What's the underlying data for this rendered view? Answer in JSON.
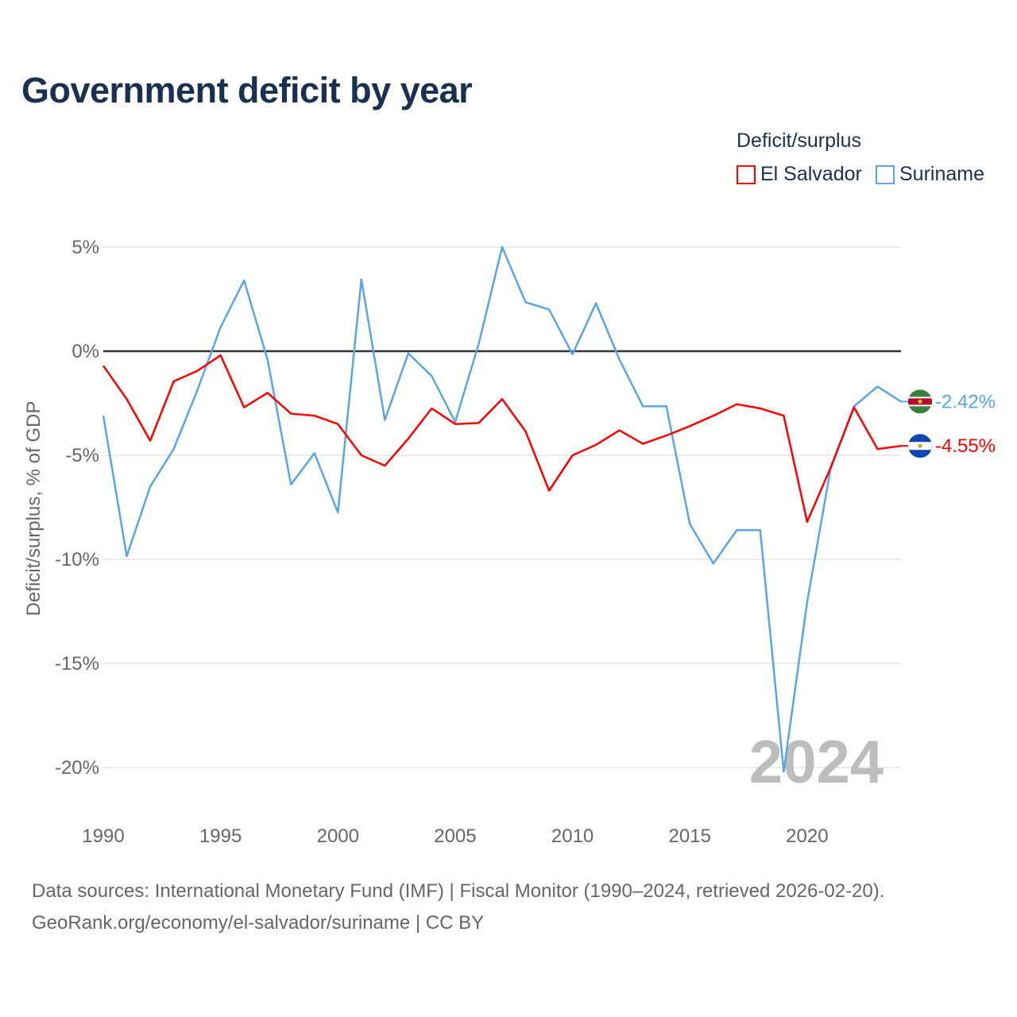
{
  "chart_data": {
    "type": "line",
    "title": "Government deficit by year",
    "xlabel": "",
    "ylabel": "Deficit/surplus, % of GDP",
    "legend_title": "Deficit/surplus",
    "legend_placement": "top-right",
    "x": [
      1990,
      1991,
      1992,
      1993,
      1994,
      1995,
      1996,
      1997,
      1998,
      1999,
      2000,
      2001,
      2002,
      2003,
      2004,
      2005,
      2006,
      2007,
      2008,
      2009,
      2010,
      2011,
      2012,
      2013,
      2014,
      2015,
      2016,
      2017,
      2018,
      2019,
      2020,
      2021,
      2022,
      2023,
      2024
    ],
    "xlim": [
      1990,
      2024
    ],
    "ylim": [
      -20,
      5
    ],
    "x_ticks": [
      "1990",
      "1995",
      "2000",
      "2005",
      "2010",
      "2015",
      "2020"
    ],
    "y_ticks": [
      {
        "v": 5,
        "label": "5%"
      },
      {
        "v": 0,
        "label": "0%"
      },
      {
        "v": -5,
        "label": "-5%"
      },
      {
        "v": -10,
        "label": "-10%"
      },
      {
        "v": -15,
        "label": "-15%"
      },
      {
        "v": -20,
        "label": "-20%"
      }
    ],
    "grid": true,
    "year_watermark": "2024",
    "series": [
      {
        "name": "El Salvador",
        "color": "#ff0000",
        "end_label": "-4.55%",
        "values": [
          -0.7,
          -2.3,
          -4.3,
          -1.45,
          -0.95,
          -0.2,
          -2.7,
          -2.0,
          -3.0,
          -3.1,
          -3.5,
          -5.0,
          -5.5,
          -4.2,
          -2.75,
          -3.5,
          -3.45,
          -2.3,
          -3.85,
          -6.7,
          -5.0,
          -4.5,
          -3.8,
          -4.45,
          -4.05,
          -3.6,
          -3.1,
          -2.55,
          -2.75,
          -3.1,
          -8.2,
          -5.6,
          -2.7,
          -4.7,
          -4.55
        ]
      },
      {
        "name": "Suriname",
        "color": "#5aa5ea",
        "end_label": "-2.42%",
        "values": [
          -3.1,
          -9.85,
          -6.5,
          -4.7,
          -1.9,
          1.15,
          3.4,
          -0.4,
          -6.4,
          -4.9,
          -7.75,
          3.45,
          -3.3,
          -0.1,
          -1.2,
          -3.4,
          0.35,
          5.0,
          2.35,
          2.0,
          -0.15,
          2.3,
          -0.4,
          -2.65,
          -2.65,
          -8.3,
          -10.2,
          -8.6,
          -8.6,
          -20.2,
          -12.05,
          -5.65,
          -2.65,
          -1.7,
          -2.42
        ]
      }
    ]
  },
  "footer": {
    "line1": "Data sources: International Monetary Fund (IMF) | Fiscal Monitor (1990–2024, retrieved 2026-02-20).",
    "line2": "GeoRank.org/economy/el-salvador/suriname | CC BY"
  }
}
